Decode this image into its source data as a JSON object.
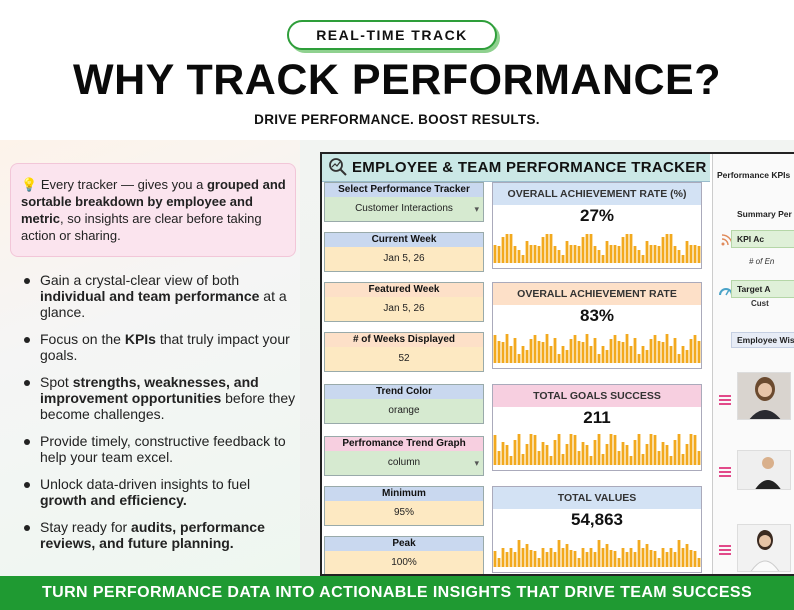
{
  "badge": "REAL-TIME TRACK",
  "title": "WHY TRACK PERFORMANCE?",
  "subtitle": "DRIVE PERFORMANCE. BOOST RESULTS.",
  "tip": {
    "icon": "lightbulb-icon",
    "part1": "Every tracker — gives you a ",
    "bold1": "grouped and sortable breakdown by employee and metric",
    "part2": ", so insights are clear before taking action or sharing."
  },
  "points": [
    {
      "pre": "Gain a crystal-clear view of both ",
      "bold": "individual and team performance",
      "post": " at a glance."
    },
    {
      "pre": "Focus on the ",
      "bold": "KPIs",
      "post": " that truly impact your goals."
    },
    {
      "pre": "Spot ",
      "bold": "strengths, weaknesses, and improvement opportunities",
      "post": " before they become challenges."
    },
    {
      "pre": "Provide timely, constructive feedback to help your team excel.",
      "bold": "",
      "post": ""
    },
    {
      "pre": "Unlock data-driven insights to fuel ",
      "bold": "growth and efficiency.",
      "post": ""
    },
    {
      "pre": "Stay ready for ",
      "bold": "audits, performance reviews, and future planning.",
      "post": ""
    }
  ],
  "sheet": {
    "title": "EMPLOYEE & TEAM PERFORMANCE TRACKER",
    "fields": [
      {
        "label": "Select Performance Tracker",
        "value": "Customer Interactions",
        "dropdown": true,
        "head_color": "#c9d8ef",
        "val_color": "#d6ead0"
      },
      {
        "label": "Current Week",
        "value": "Jan 5, 26",
        "dropdown": false,
        "head_color": "#c9d8ef",
        "val_color": "#fde9c2"
      },
      {
        "label": "Featured Week",
        "value": "Jan 5, 26",
        "dropdown": false,
        "head_color": "#fde0c8",
        "val_color": "#fde9c2"
      },
      {
        "label": "# of Weeks Displayed",
        "value": "52",
        "dropdown": false,
        "head_color": "#fde0c8",
        "val_color": "#fde9c2"
      },
      {
        "label": "Trend Color",
        "value": "orange",
        "dropdown": false,
        "head_color": "#c9d8ef",
        "val_color": "#d6ead0"
      },
      {
        "label": "Perfromance Trend Graph",
        "value": "column",
        "dropdown": true,
        "head_color": "#f7cfe0",
        "val_color": "#d6ead0"
      },
      {
        "label": "Minimum",
        "value": "95%",
        "dropdown": false,
        "head_color": "#c9d8ef",
        "val_color": "#fde9c2"
      },
      {
        "label": "Peak",
        "value": "100%",
        "dropdown": false,
        "head_color": "#c9d8ef",
        "val_color": "#fde9c2"
      }
    ],
    "panels": [
      {
        "label": "OVERALL ACHIEVEMENT RATE (%)",
        "value": "27%",
        "head_color": "#d3e2f4"
      },
      {
        "label": "OVERALL ACHIEVEMENT RATE",
        "value": "83%",
        "head_color": "#fde0c8"
      },
      {
        "label": "TOTAL GOALS SUCCESS",
        "value": "211",
        "head_color": "#f7cfe0"
      },
      {
        "label": "TOTAL VALUES",
        "value": "54,863",
        "head_color": "#d3e2f4"
      }
    ],
    "bar_color": "#f2a91e",
    "right": {
      "kpi_label": "Performance KPIs",
      "summary_label": "Summary Per",
      "kpi_ac": "KPI Ac",
      "kpi_sub": "# of En",
      "target": "Target A",
      "target_sub": "Cust",
      "employee": "Employee Wis"
    }
  },
  "footer": "TURN PERFORMANCE DATA INTO ACTIONABLE INSIGHTS THAT DRIVE TEAM SUCCESS"
}
